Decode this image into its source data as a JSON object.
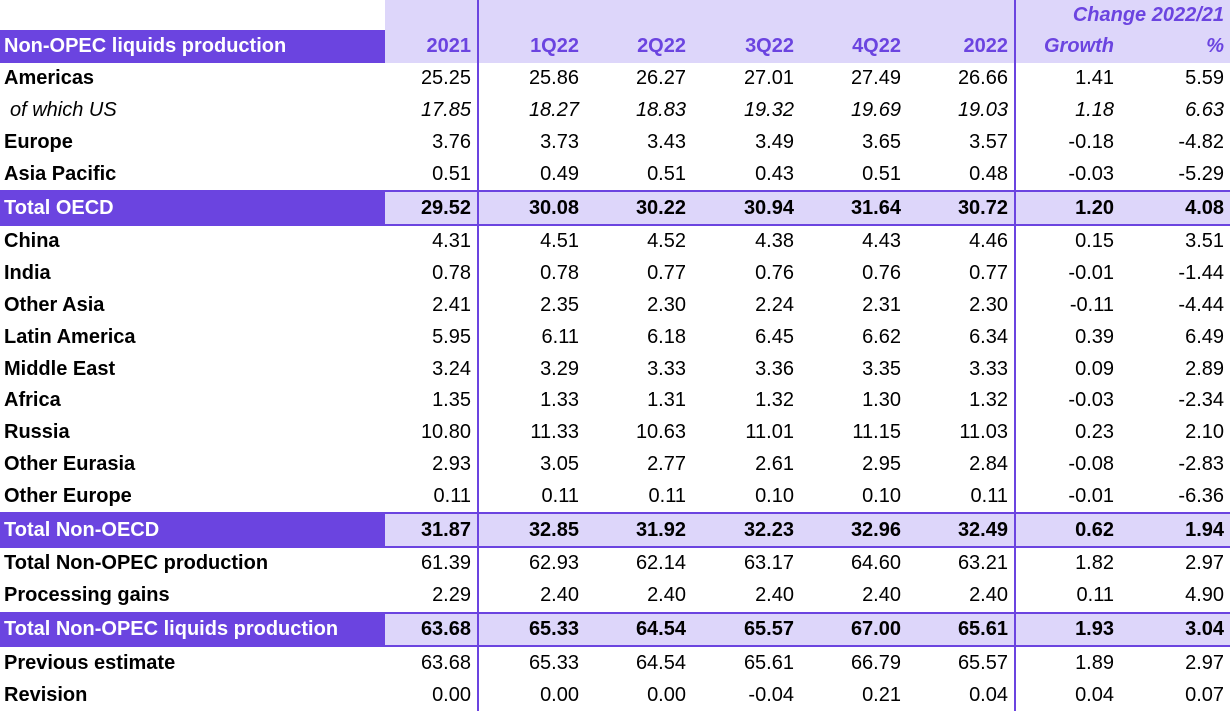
{
  "header": {
    "label": "Non-OPEC liquids production",
    "group": "Change 2022/21",
    "columns": [
      "2021",
      "1Q22",
      "2Q22",
      "3Q22",
      "4Q22",
      "2022",
      "Growth",
      "%"
    ]
  },
  "rows": [
    {
      "label": "Americas",
      "values": [
        "25.25",
        "25.86",
        "26.27",
        "27.01",
        "27.49",
        "26.66",
        "1.41",
        "5.59"
      ]
    },
    {
      "label": "of which US",
      "values": [
        "17.85",
        "18.27",
        "18.83",
        "19.32",
        "19.69",
        "19.03",
        "1.18",
        "6.63"
      ]
    },
    {
      "label": "Europe",
      "values": [
        "3.76",
        "3.73",
        "3.43",
        "3.49",
        "3.65",
        "3.57",
        "-0.18",
        "-4.82"
      ]
    },
    {
      "label": "Asia Pacific",
      "values": [
        "0.51",
        "0.49",
        "0.51",
        "0.43",
        "0.51",
        "0.48",
        "-0.03",
        "-5.29"
      ]
    },
    {
      "label": "Total OECD",
      "values": [
        "29.52",
        "30.08",
        "30.22",
        "30.94",
        "31.64",
        "30.72",
        "1.20",
        "4.08"
      ]
    },
    {
      "label": "China",
      "values": [
        "4.31",
        "4.51",
        "4.52",
        "4.38",
        "4.43",
        "4.46",
        "0.15",
        "3.51"
      ]
    },
    {
      "label": "India",
      "values": [
        "0.78",
        "0.78",
        "0.77",
        "0.76",
        "0.76",
        "0.77",
        "-0.01",
        "-1.44"
      ]
    },
    {
      "label": "Other Asia",
      "values": [
        "2.41",
        "2.35",
        "2.30",
        "2.24",
        "2.31",
        "2.30",
        "-0.11",
        "-4.44"
      ]
    },
    {
      "label": "Latin America",
      "values": [
        "5.95",
        "6.11",
        "6.18",
        "6.45",
        "6.62",
        "6.34",
        "0.39",
        "6.49"
      ]
    },
    {
      "label": "Middle East",
      "values": [
        "3.24",
        "3.29",
        "3.33",
        "3.36",
        "3.35",
        "3.33",
        "0.09",
        "2.89"
      ]
    },
    {
      "label": "Africa",
      "values": [
        "1.35",
        "1.33",
        "1.31",
        "1.32",
        "1.30",
        "1.32",
        "-0.03",
        "-2.34"
      ]
    },
    {
      "label": "Russia",
      "values": [
        "10.80",
        "11.33",
        "10.63",
        "11.01",
        "11.15",
        "11.03",
        "0.23",
        "2.10"
      ]
    },
    {
      "label": "Other Eurasia",
      "values": [
        "2.93",
        "3.05",
        "2.77",
        "2.61",
        "2.95",
        "2.84",
        "-0.08",
        "-2.83"
      ]
    },
    {
      "label": "Other Europe",
      "values": [
        "0.11",
        "0.11",
        "0.11",
        "0.10",
        "0.10",
        "0.11",
        "-0.01",
        "-6.36"
      ]
    },
    {
      "label": "Total Non-OECD",
      "values": [
        "31.87",
        "32.85",
        "31.92",
        "32.23",
        "32.96",
        "32.49",
        "0.62",
        "1.94"
      ]
    },
    {
      "label": "Total Non-OPEC production",
      "values": [
        "61.39",
        "62.93",
        "62.14",
        "63.17",
        "64.60",
        "63.21",
        "1.82",
        "2.97"
      ]
    },
    {
      "label": "Processing gains",
      "values": [
        "2.29",
        "2.40",
        "2.40",
        "2.40",
        "2.40",
        "2.40",
        "0.11",
        "4.90"
      ]
    },
    {
      "label": "Total Non-OPEC liquids production",
      "values": [
        "63.68",
        "65.33",
        "64.54",
        "65.57",
        "67.00",
        "65.61",
        "1.93",
        "3.04"
      ]
    },
    {
      "label": "Previous estimate",
      "values": [
        "63.68",
        "65.33",
        "64.54",
        "65.61",
        "66.79",
        "65.57",
        "1.89",
        "2.97"
      ]
    },
    {
      "label": "Revision",
      "values": [
        "0.00",
        "0.00",
        "0.00",
        "-0.04",
        "0.21",
        "0.04",
        "0.04",
        "0.07"
      ]
    }
  ]
}
